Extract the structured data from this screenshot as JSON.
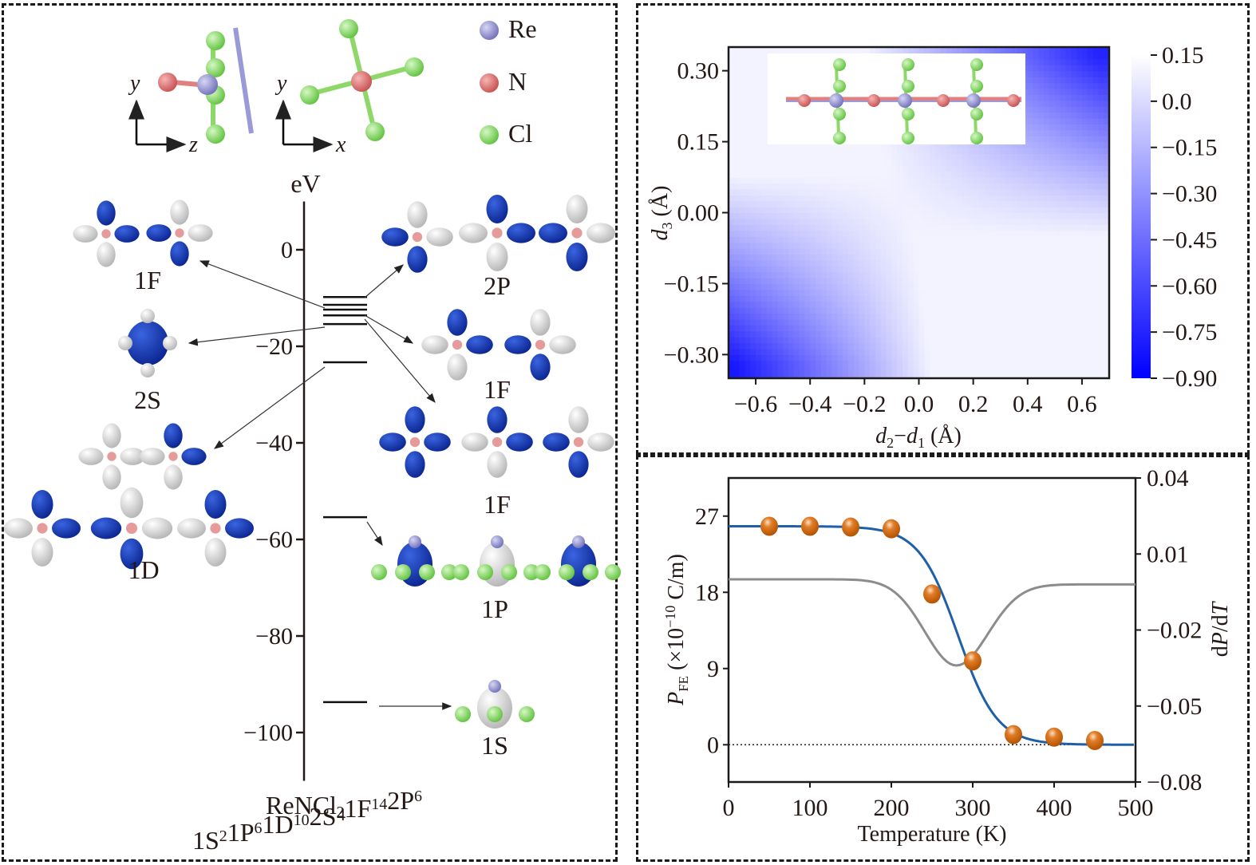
{
  "panel_a": {
    "legend": [
      {
        "element": "Re",
        "color": "#8e8ed4"
      },
      {
        "element": "N",
        "color": "#e07070"
      },
      {
        "element": "Cl",
        "color": "#8fe26a"
      }
    ],
    "axes_views": [
      {
        "vertical": "y",
        "horizontal": "z"
      },
      {
        "vertical": "y",
        "horizontal": "x"
      }
    ],
    "energy_unit": "eV",
    "molecule": "ReNCl",
    "molecule_subscript": "4",
    "configuration": [
      {
        "orb": "1S",
        "sup": "2"
      },
      {
        "orb": "1P",
        "sup": "6"
      },
      {
        "orb": "1D",
        "sup": "10"
      },
      {
        "orb": "2S",
        "sup": "2"
      },
      {
        "orb": "1F",
        "sup": "14"
      },
      {
        "orb": "2P",
        "sup": "6"
      }
    ],
    "orbital_labels": {
      "left_1F": "1F",
      "left_2S": "2S",
      "left_1D": "1D",
      "right_2P": "2P",
      "right_1F_a": "1F",
      "right_1F_b": "1F",
      "right_1P": "1P",
      "right_1S": "1S"
    },
    "isosurface_colors": {
      "positive": "#0b2fb8",
      "negative": "#e6e6e6"
    }
  },
  "chart_data": [
    {
      "type": "line",
      "id": "energy-level-diagram",
      "ylabel": "eV",
      "ylim": [
        -110,
        10
      ],
      "yticks": [
        0,
        -20,
        -40,
        -60,
        -80,
        -100
      ],
      "levels_eV": [
        -9.8,
        -11.4,
        -12.4,
        -13.6,
        -15.4,
        -23.3,
        -55.4,
        -93.7
      ],
      "level_assignments": [
        "2P",
        "1F",
        "1F",
        "1F",
        "2S",
        "1D",
        "1P",
        "1S"
      ]
    },
    {
      "type": "heatmap",
      "id": "energy-map",
      "xlabel": "d2−d1 (Å)",
      "xlabel_parts": {
        "a": "d",
        "a_sub": "2",
        "dash": "−",
        "b": "d",
        "b_sub": "1",
        "unit": " (Å)"
      },
      "ylabel_parts": {
        "a": "d",
        "a_sub": "3",
        "unit": " (Å)"
      },
      "xlim": [
        -0.7,
        0.7
      ],
      "ylim": [
        -0.35,
        0.35
      ],
      "xticks": [
        "−0.6",
        "−0.4",
        "−0.2",
        "0.0",
        "0.2",
        "0.4",
        "0.6"
      ],
      "xtick_values": [
        -0.6,
        -0.4,
        -0.2,
        0.0,
        0.2,
        0.4,
        0.6
      ],
      "yticks": [
        "0.30",
        "0.15",
        "0.00",
        "−0.15",
        "−0.30"
      ],
      "ytick_values": [
        0.3,
        0.15,
        0.0,
        -0.15,
        -0.3
      ],
      "colorbar": {
        "range": [
          -0.9,
          0.15
        ],
        "ticks": [
          "0.15",
          "0.0",
          "−0.15",
          "−0.30",
          "−0.45",
          "−0.60",
          "−0.75",
          "−0.90"
        ],
        "tick_values": [
          0.15,
          0.0,
          -0.15,
          -0.3,
          -0.45,
          -0.6,
          -0.75,
          -0.9
        ],
        "color_low": "#0000ff",
        "color_high": "#ffffff"
      },
      "corners": {
        "bottom_left": -0.9,
        "top_right": -0.85,
        "top_left": 0.1,
        "bottom_right": 0.1
      },
      "inset": "ReNCl4 chain structure"
    },
    {
      "type": "line",
      "id": "polarization-vs-temperature",
      "xlabel": "Temperature (K)",
      "ylabel_parts": {
        "p": "P",
        "sub": "FE",
        "rest": " (×10",
        "exp": "−10",
        "unit": " C/m)"
      },
      "ylabel_right_parts": {
        "d": "d",
        "p": "P",
        "slash": "/d",
        "t": "T"
      },
      "xlim": [
        0,
        500
      ],
      "ylim": [
        -4.4,
        31.5
      ],
      "ylim_right": [
        -0.08,
        0.04
      ],
      "xticks": [
        0,
        100,
        200,
        300,
        400,
        500
      ],
      "yticks": [
        0,
        9,
        18,
        27
      ],
      "yticks_right": [
        "0.04",
        "0.01",
        "−0.02",
        "−0.05",
        "−0.08"
      ],
      "ytick_values_right": [
        0.04,
        0.01,
        -0.02,
        -0.05,
        -0.08
      ],
      "series": [
        {
          "name": "P_FE data",
          "kind": "scatter",
          "color": "#d4680f",
          "x": [
            50,
            100,
            150,
            200,
            250,
            300,
            350,
            400,
            450
          ],
          "y": [
            25.8,
            25.8,
            25.7,
            25.5,
            17.8,
            9.9,
            1.2,
            0.9,
            0.5
          ]
        },
        {
          "name": "P_FE fit",
          "kind": "line",
          "color": "#1f5fa8",
          "model": "sigmoid",
          "amplitude": 25.8,
          "center": 282,
          "width": 24
        },
        {
          "name": "dP/dT",
          "kind": "line",
          "axis": "right",
          "color": "#8c8c8c",
          "baseline_left": 0.0,
          "baseline_right": -0.002,
          "minimum": -0.034,
          "minimum_at": 280
        }
      ],
      "reference_line": {
        "y": 0,
        "style": "dotted"
      }
    }
  ]
}
